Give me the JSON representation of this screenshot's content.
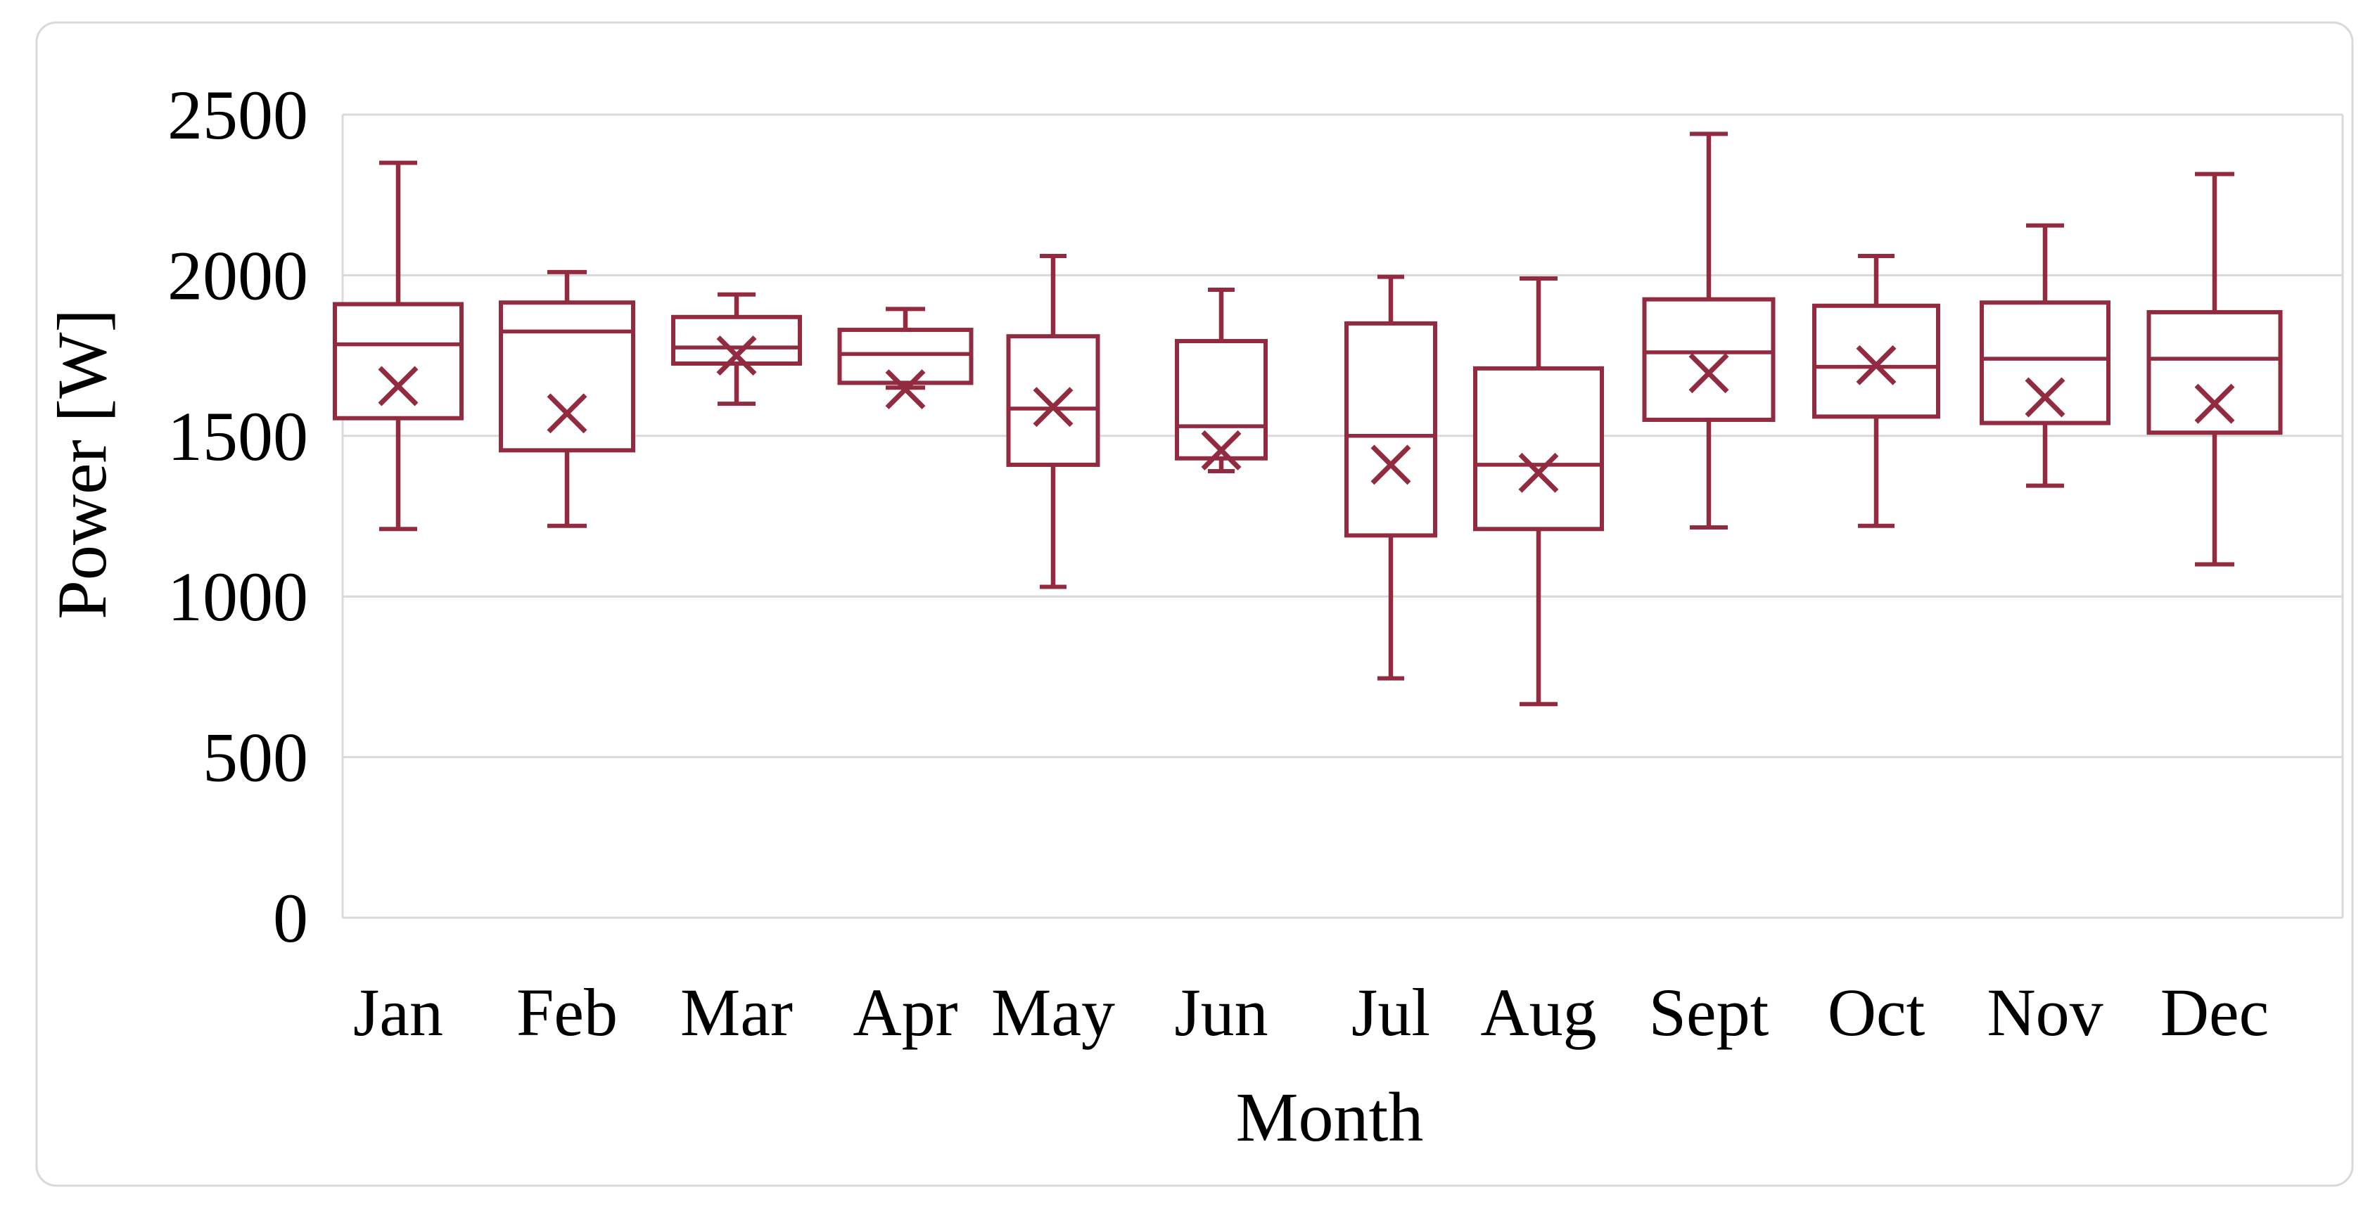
{
  "chart_data": {
    "type": "box",
    "title": "",
    "xlabel": "Month",
    "ylabel": "Power [W]",
    "ylim": [
      0,
      2500
    ],
    "ytick_step": 500,
    "yticks": [
      0,
      500,
      1000,
      1500,
      2000,
      2500
    ],
    "ytick_labels": [
      "0",
      "500",
      "1000",
      "1500",
      "2000",
      "2500"
    ],
    "grid": true,
    "legend": false,
    "categories": [
      "Jan",
      "Feb",
      "Mar",
      "Apr",
      "May",
      "Jun",
      "Jul",
      "Aug",
      "Sept",
      "Oct",
      "Nov",
      "Dec"
    ],
    "series": [
      {
        "name": "Power",
        "boxes": [
          {
            "category": "Jan",
            "min": 1210,
            "q1": 1555,
            "median": 1785,
            "mean": 1655,
            "q3": 1910,
            "max": 2350
          },
          {
            "category": "Feb",
            "min": 1220,
            "q1": 1455,
            "median": 1825,
            "mean": 1570,
            "q3": 1915,
            "max": 2010
          },
          {
            "category": "Mar",
            "min": 1600,
            "q1": 1725,
            "median": 1775,
            "mean": 1750,
            "q3": 1870,
            "max": 1940
          },
          {
            "category": "Apr",
            "min": 1650,
            "q1": 1665,
            "median": 1755,
            "mean": 1645,
            "q3": 1830,
            "max": 1895
          },
          {
            "category": "May",
            "min": 1030,
            "q1": 1410,
            "median": 1585,
            "mean": 1590,
            "q3": 1810,
            "max": 2060
          },
          {
            "category": "Jun",
            "min": 1390,
            "q1": 1430,
            "median": 1530,
            "mean": 1455,
            "q3": 1795,
            "max": 1955
          },
          {
            "category": "Jul",
            "min": 745,
            "q1": 1190,
            "median": 1500,
            "mean": 1410,
            "q3": 1850,
            "max": 1995
          },
          {
            "category": "Aug",
            "min": 665,
            "q1": 1210,
            "median": 1410,
            "mean": 1385,
            "q3": 1710,
            "max": 1990
          },
          {
            "category": "Sept",
            "min": 1215,
            "q1": 1550,
            "median": 1760,
            "mean": 1695,
            "q3": 1925,
            "max": 2440
          },
          {
            "category": "Oct",
            "min": 1220,
            "q1": 1560,
            "median": 1715,
            "mean": 1720,
            "q3": 1905,
            "max": 2060
          },
          {
            "category": "Nov",
            "min": 1345,
            "q1": 1540,
            "median": 1740,
            "mean": 1620,
            "q3": 1915,
            "max": 2155
          },
          {
            "category": "Dec",
            "min": 1100,
            "q1": 1510,
            "median": 1740,
            "mean": 1600,
            "q3": 1885,
            "max": 2315
          }
        ]
      }
    ],
    "colors": {
      "box_stroke": "#932B40",
      "gridline": "#D9D9D9",
      "plot_border": "#D9D9D9",
      "frame_border": "#D9D9D9",
      "text": "#000000",
      "box_fill": "#FFFFFF"
    },
    "layout_hints": {
      "gridlines": "horizontal",
      "legend_position": "none",
      "mean_marker": "x"
    }
  }
}
